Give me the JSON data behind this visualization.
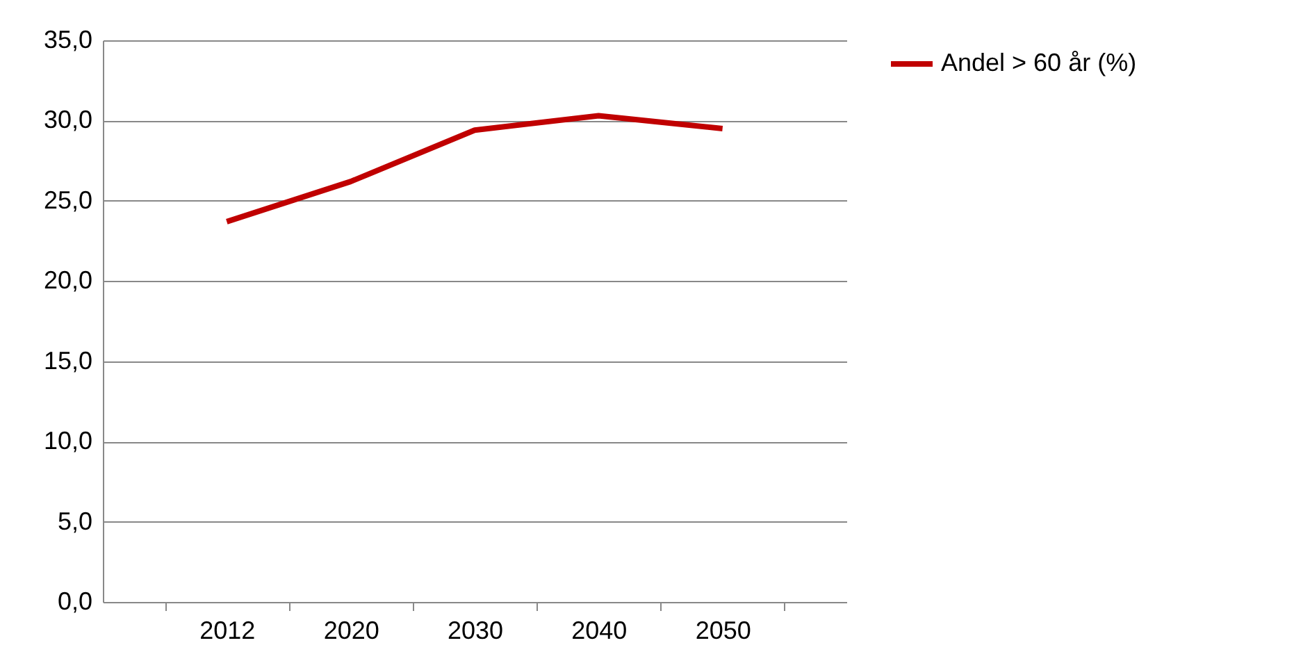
{
  "chart_data": {
    "type": "line",
    "categories": [
      "2012",
      "2020",
      "2030",
      "2040",
      "2050"
    ],
    "series": [
      {
        "name": "Andel > 60 år (%)",
        "color": "#c00000",
        "values": [
          23.7,
          26.2,
          29.4,
          30.3,
          29.5
        ]
      }
    ],
    "ylim": [
      0,
      35
    ],
    "yticks": [
      {
        "value": 0,
        "label": "0,0"
      },
      {
        "value": 5,
        "label": "5,0"
      },
      {
        "value": 10,
        "label": "10,0"
      },
      {
        "value": 15,
        "label": "15,0"
      },
      {
        "value": 20,
        "label": "20,0"
      },
      {
        "value": 25,
        "label": "25,0"
      },
      {
        "value": 30,
        "label": "30,0"
      },
      {
        "value": 35,
        "label": "35,0"
      }
    ],
    "grid": "y",
    "legend": "right",
    "marker": "none",
    "line_style": "solid"
  }
}
